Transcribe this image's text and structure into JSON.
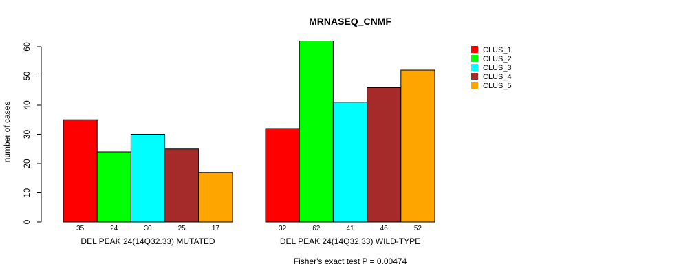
{
  "chart_data": {
    "type": "bar",
    "title": "MRNASEQ_CNMF",
    "ylabel": "number of cases",
    "xlabel": "",
    "ylim": [
      0,
      62
    ],
    "yticks": [
      0,
      10,
      20,
      30,
      40,
      50,
      60
    ],
    "grid": false,
    "legend_position": "top-right",
    "categories": [
      "DEL PEAK 24(14Q32.33) MUTATED",
      "DEL PEAK 24(14Q32.33) WILD-TYPE"
    ],
    "series": [
      {
        "name": "CLUS_1",
        "color": "#ff0000",
        "values": [
          35,
          32
        ]
      },
      {
        "name": "CLUS_2",
        "color": "#00ff00",
        "values": [
          24,
          62
        ]
      },
      {
        "name": "CLUS_3",
        "color": "#00ffff",
        "values": [
          30,
          41
        ]
      },
      {
        "name": "CLUS_4",
        "color": "#a52a2a",
        "values": [
          25,
          46
        ]
      },
      {
        "name": "CLUS_5",
        "color": "#ffa500",
        "values": [
          17,
          52
        ]
      }
    ],
    "annotation": "Fisher's exact test P = 0.00474"
  }
}
